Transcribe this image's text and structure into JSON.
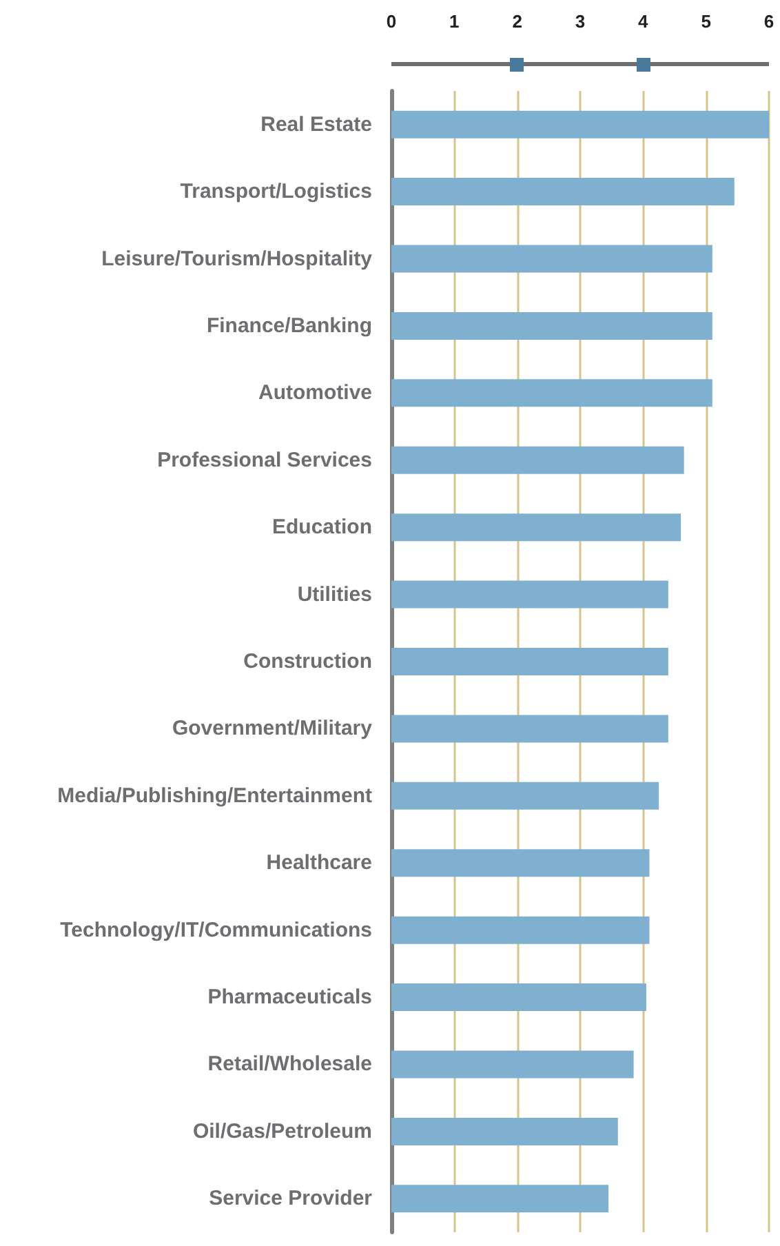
{
  "chart_data": {
    "type": "bar",
    "orientation": "horizontal",
    "categories": [
      "Real Estate",
      "Transport/Logistics",
      "Leisure/Tourism/Hospitality",
      "Finance/Banking",
      "Automotive",
      "Professional Services",
      "Education",
      "Utilities",
      "Construction",
      "Government/Military",
      "Media/Publishing/Entertainment",
      "Healthcare",
      "Technology/IT/Communications",
      "Pharmaceuticals",
      "Retail/Wholesale",
      "Oil/Gas/Petroleum",
      "Service Provider"
    ],
    "values": [
      6.0,
      5.45,
      5.1,
      5.1,
      5.1,
      4.65,
      4.6,
      4.4,
      4.4,
      4.4,
      4.25,
      4.1,
      4.1,
      4.05,
      3.85,
      3.6,
      3.45
    ],
    "color": "#7fb0cf",
    "xlim": [
      0,
      6
    ],
    "xticks": [
      0,
      1,
      2,
      3,
      4,
      5,
      6
    ],
    "grid": "x"
  }
}
